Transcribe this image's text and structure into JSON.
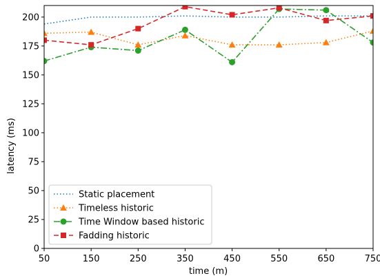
{
  "chart_data": {
    "type": "line",
    "title": "",
    "xlabel": "time (m)",
    "ylabel": "latency (ms)",
    "x": [
      50,
      150,
      250,
      350,
      450,
      550,
      650,
      750
    ],
    "xlim": [
      50,
      750
    ],
    "ylim": [
      0,
      210
    ],
    "xticks": [
      50,
      150,
      250,
      350,
      450,
      550,
      650,
      750
    ],
    "yticks": [
      0,
      25,
      50,
      75,
      100,
      125,
      150,
      175,
      200
    ],
    "grid": false,
    "legend_position": "lower-left",
    "series": [
      {
        "name": "Static placement",
        "color": "#1f77b4",
        "linestyle": "dotted",
        "marker": "none",
        "values": [
          194,
          200,
          200,
          201,
          200,
          200,
          201,
          201
        ]
      },
      {
        "name": "Timeless historic",
        "color": "#ff7f0e",
        "linestyle": "dotted",
        "marker": "triangle",
        "values": [
          186,
          187,
          176,
          184,
          176,
          176,
          178,
          188
        ]
      },
      {
        "name": "Time Window based historic",
        "color": "#2ca02c",
        "linestyle": "dashdot",
        "marker": "circle",
        "values": [
          162,
          174,
          171,
          189,
          161,
          207,
          206,
          178
        ]
      },
      {
        "name": "Fadding historic",
        "color": "#d62728",
        "linestyle": "dashed",
        "marker": "square",
        "values": [
          180,
          176,
          190,
          209,
          202,
          208,
          197,
          201
        ]
      }
    ]
  }
}
